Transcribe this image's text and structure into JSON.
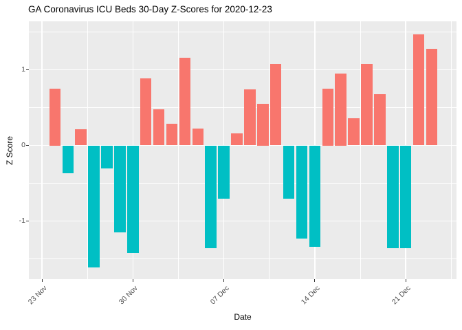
{
  "title": "GA Coronavirus ICU Beds 30-Day Z-Scores for 2020-12-23",
  "chart_data": {
    "type": "bar",
    "title": "GA Coronavirus ICU Beds 30-Day Z-Scores for 2020-12-23",
    "xlabel": "Date",
    "ylabel": "Z Score",
    "grid": true,
    "legend": false,
    "x": [
      "2020-11-24",
      "2020-11-25",
      "2020-11-26",
      "2020-11-27",
      "2020-11-28",
      "2020-11-29",
      "2020-11-30",
      "2020-12-01",
      "2020-12-02",
      "2020-12-03",
      "2020-12-04",
      "2020-12-05",
      "2020-12-06",
      "2020-12-07",
      "2020-12-08",
      "2020-12-09",
      "2020-12-10",
      "2020-12-11",
      "2020-12-12",
      "2020-12-13",
      "2020-12-14",
      "2020-12-15",
      "2020-12-16",
      "2020-12-17",
      "2020-12-18",
      "2020-12-19",
      "2020-12-20",
      "2020-12-21",
      "2020-12-22",
      "2020-12-23"
    ],
    "values": [
      0.75,
      -0.37,
      0.21,
      -1.61,
      -0.3,
      -1.15,
      -1.42,
      0.89,
      0.48,
      0.29,
      1.16,
      0.22,
      -1.36,
      -0.7,
      0.16,
      0.74,
      0.55,
      1.08,
      -0.7,
      -1.23,
      -1.34,
      0.75,
      0.95,
      0.36,
      1.08,
      0.68,
      -1.36,
      -1.36,
      1.47,
      1.28
    ],
    "x_tick_labels": [
      "23 Nov",
      "30 Nov",
      "07 Dec",
      "14 Dec",
      "21 Dec"
    ],
    "x_tick_days": [
      0,
      7,
      14,
      21,
      28
    ],
    "x_minor_days": [
      3.5,
      10.5,
      17.5,
      24.5,
      31.5
    ],
    "y_tick_labels": [
      "-1",
      "0",
      "1"
    ],
    "y_ticks": [
      -1,
      0,
      1
    ],
    "y_minor": [
      -1.5,
      -0.5,
      0.5,
      1.5
    ],
    "ylim": [
      -1.77,
      1.64
    ],
    "colors": {
      "positive": "#F8766D",
      "negative": "#00BFC4",
      "panel_bg": "#EBEBEB",
      "gridline": "#FFFFFF",
      "tick_text": "#4D4D4D",
      "axis_title_text": "#000000",
      "tick_mark": "#333333"
    }
  }
}
